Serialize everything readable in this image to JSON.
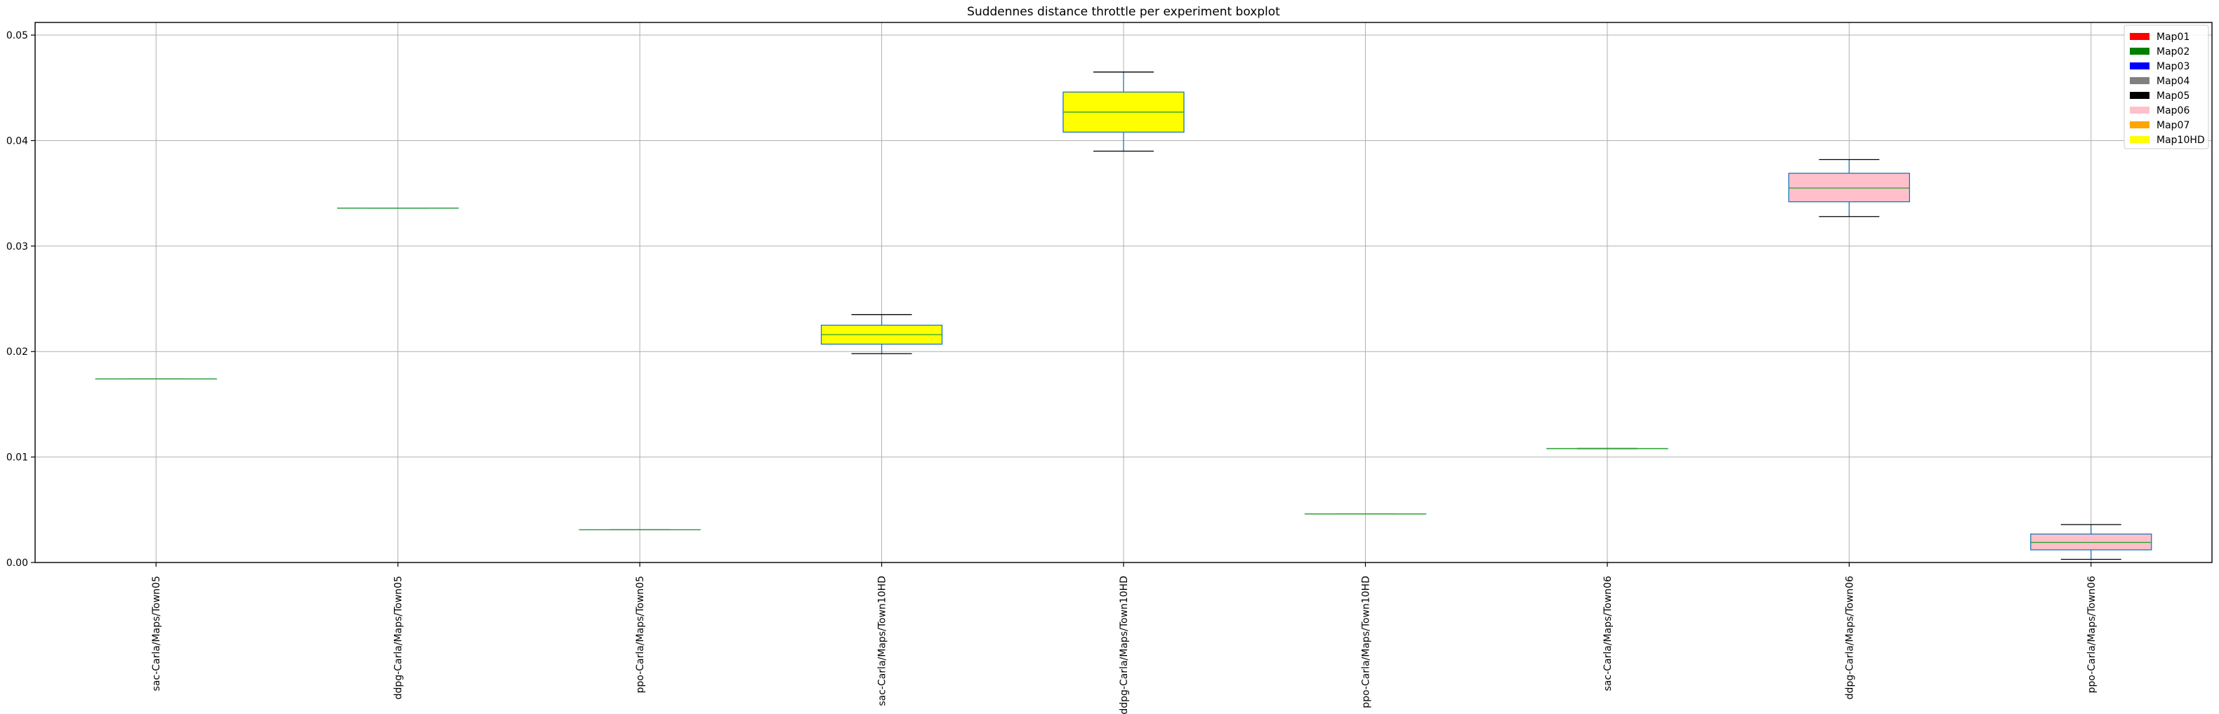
{
  "chart_data": {
    "type": "box",
    "title": "Suddennes distance throttle per experiment boxplot",
    "xlabel": "",
    "ylabel": "",
    "ylim": [
      0,
      0.0512
    ],
    "yticks": [
      "0.00",
      "0.01",
      "0.02",
      "0.03",
      "0.04",
      "0.05"
    ],
    "grid": true,
    "legend_position": "top-right",
    "legend": [
      {
        "label": "Map01",
        "color": "#ff0000"
      },
      {
        "label": "Map02",
        "color": "#008000"
      },
      {
        "label": "Map03",
        "color": "#0000ff"
      },
      {
        "label": "Map04",
        "color": "#808080"
      },
      {
        "label": "Map05",
        "color": "#000000"
      },
      {
        "label": "Map06",
        "color": "#ffc0cb"
      },
      {
        "label": "Map07",
        "color": "#ffa500"
      },
      {
        "label": "Map10HD",
        "color": "#ffff00"
      }
    ],
    "categories": [
      "sac-Carla/Maps/Town05",
      "ddpg-Carla/Maps/Town05",
      "ppo-Carla/Maps/Town05",
      "sac-Carla/Maps/Town10HD",
      "ddpg-Carla/Maps/Town10HD",
      "ppo-Carla/Maps/Town10HD",
      "sac-Carla/Maps/Town06",
      "ddpg-Carla/Maps/Town06",
      "ppo-Carla/Maps/Town06"
    ],
    "boxes": [
      {
        "whislo": 0.0174,
        "q1": 0.0174,
        "med": 0.0174,
        "q3": 0.0174,
        "whishi": 0.0174,
        "fill": "#ffffff"
      },
      {
        "whislo": 0.0336,
        "q1": 0.0336,
        "med": 0.0336,
        "q3": 0.0336,
        "whishi": 0.0336,
        "fill": "#ffffff"
      },
      {
        "whislo": 0.0031,
        "q1": 0.0031,
        "med": 0.0031,
        "q3": 0.0031,
        "whishi": 0.0031,
        "fill": "#ffffff"
      },
      {
        "whislo": 0.0198,
        "q1": 0.0207,
        "med": 0.0216,
        "q3": 0.0225,
        "whishi": 0.0235,
        "fill": "#ffff00"
      },
      {
        "whislo": 0.039,
        "q1": 0.0408,
        "med": 0.0427,
        "q3": 0.0446,
        "whishi": 0.0465,
        "fill": "#ffff00"
      },
      {
        "whislo": 0.0046,
        "q1": 0.0046,
        "med": 0.0046,
        "q3": 0.0046,
        "whishi": 0.0046,
        "fill": "#ffffff"
      },
      {
        "whislo": 0.0108,
        "q1": 0.0108,
        "med": 0.0108,
        "q3": 0.0108,
        "whishi": 0.0108,
        "fill": "#ffffff"
      },
      {
        "whislo": 0.0328,
        "q1": 0.0342,
        "med": 0.0355,
        "q3": 0.0369,
        "whishi": 0.0382,
        "fill": "#ffc0cb"
      },
      {
        "whislo": 0.0003,
        "q1": 0.0012,
        "med": 0.0019,
        "q3": 0.0027,
        "whishi": 0.0036,
        "fill": "#ffc0cb"
      }
    ],
    "box_edge_color": "#1f77b4",
    "whisker_color": "#1f77b4",
    "cap_color": "#000000",
    "median_color": "#2ca02c"
  }
}
